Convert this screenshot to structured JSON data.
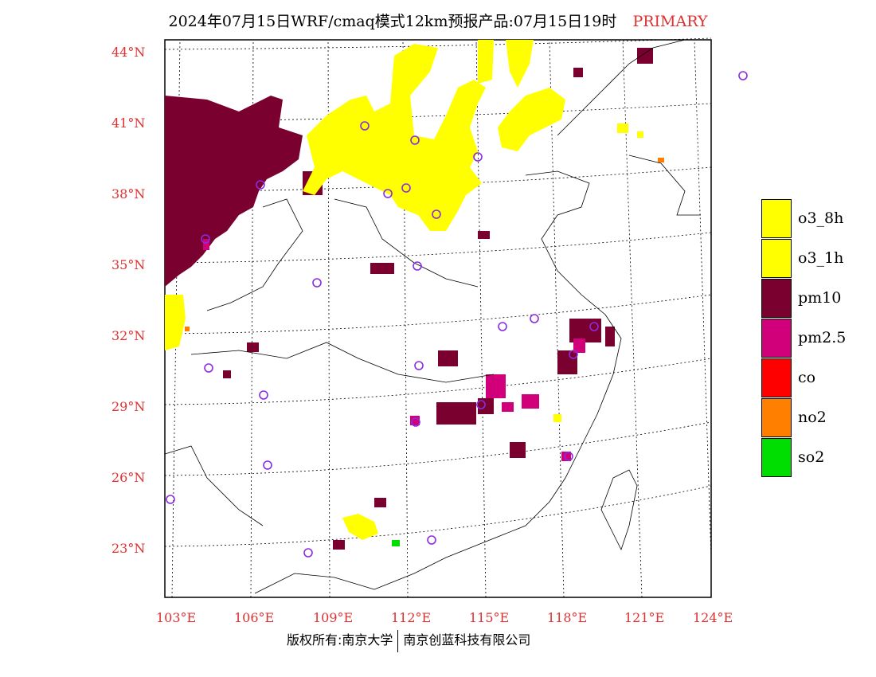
{
  "header": {
    "title": "2024年07月15日WRF/cmaq模式12km预报产品:07月15日19时",
    "tag": "PRIMARY"
  },
  "axes": {
    "lat_labels": [
      "44°N",
      "41°N",
      "38°N",
      "35°N",
      "32°N",
      "29°N",
      "26°N",
      "23°N"
    ],
    "lon_labels": [
      "103°E",
      "106°E",
      "109°E",
      "112°E",
      "115°E",
      "118°E",
      "121°E",
      "124°E"
    ]
  },
  "legend": {
    "items": [
      {
        "label": "o3_8h",
        "color": "#ffff00"
      },
      {
        "label": "o3_1h",
        "color": "#ffff00"
      },
      {
        "label": "pm10",
        "color": "#7a0030"
      },
      {
        "label": "pm2.5",
        "color": "#d1007a"
      },
      {
        "label": "co",
        "color": "#ff0000"
      },
      {
        "label": "no2",
        "color": "#ff8000"
      },
      {
        "label": "so2",
        "color": "#00dd00"
      }
    ]
  },
  "footer": {
    "left": "版权所有:南京大学",
    "right": "南京创蓝科技有限公司"
  }
}
